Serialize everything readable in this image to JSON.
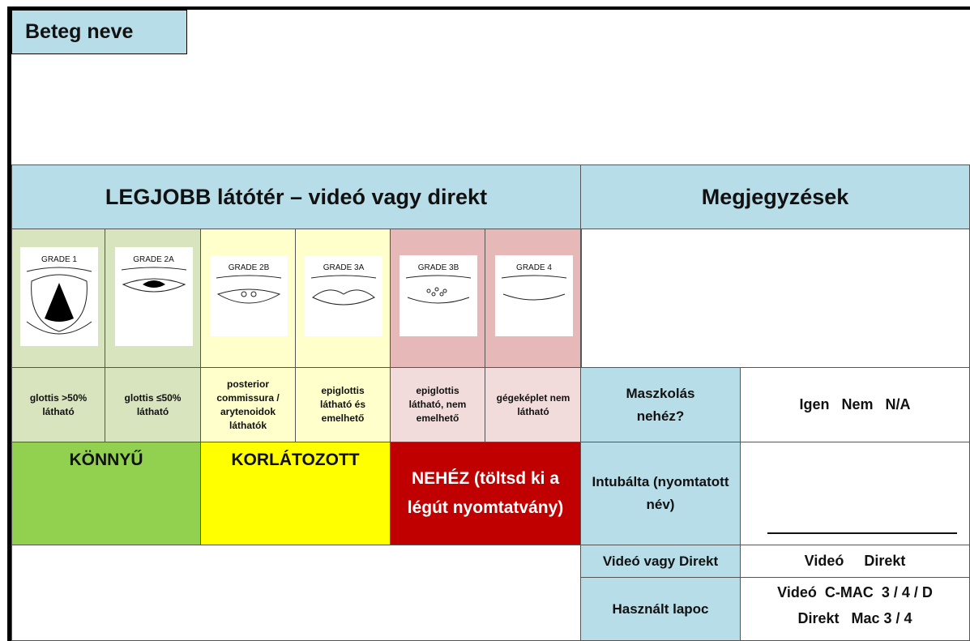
{
  "header": {
    "patient_label": "Beteg neve"
  },
  "table": {
    "view_title": "LEGJOBB látótér – videó vagy direkt",
    "notes_title": "Megjegyzések",
    "grades": [
      {
        "label": "GRADE 1",
        "description": "glottis >50% látható"
      },
      {
        "label": "GRADE 2A",
        "description": "glottis ≤50% látható"
      },
      {
        "label": "GRADE 2B",
        "description": "posterior commissura / arytenoidok láthatók"
      },
      {
        "label": "GRADE 3A",
        "description": "epiglottis látható és emelhető"
      },
      {
        "label": "GRADE 3B",
        "description": "epiglottis látható, nem emelhető"
      },
      {
        "label": "GRADE 4",
        "description": "gégeképlet nem látható"
      }
    ],
    "categories": [
      "KÖNNYŰ",
      "KORLÁTOZOTT",
      "NEHÉZ (töltsd ki a légút nyomtatvány)"
    ],
    "fields": [
      {
        "label": "Maszkolás nehéz?",
        "value": "Igen   Nem   N/A"
      },
      {
        "label": "Intubálta (nyomtatott név)"
      },
      {
        "label": "Videó vagy Direkt",
        "value": "Videó     Direkt"
      },
      {
        "label": "Használt lapoc",
        "value": "Videó  C-MAC  3 / 4 / D",
        "value2": "Direkt   Mac 3 / 4"
      }
    ]
  }
}
